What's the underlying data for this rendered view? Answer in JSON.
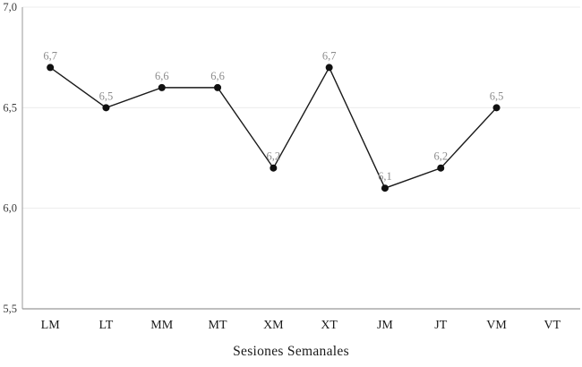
{
  "chart_data": {
    "type": "line",
    "title": "",
    "xlabel": "Sesiones Semanales",
    "ylabel": "",
    "categories": [
      "LM",
      "LT",
      "MM",
      "MT",
      "XM",
      "XT",
      "JM",
      "JT",
      "VM",
      "VT"
    ],
    "series": [
      {
        "name": "Sesiones Semanales",
        "values": [
          6.7,
          6.5,
          6.6,
          6.6,
          6.2,
          6.7,
          6.1,
          6.2,
          6.5,
          null
        ],
        "point_labels": [
          "6,7",
          "6,5",
          "6,6",
          "6,6",
          "6,2",
          "6,7",
          "6,1",
          "6,2",
          "6,5",
          ""
        ]
      }
    ],
    "ylim": [
      5.5,
      7.0
    ],
    "yticks": [
      {
        "value": 7.0,
        "label": "7,0"
      },
      {
        "value": 6.5,
        "label": "6,5"
      },
      {
        "value": 6.0,
        "label": "6,0"
      },
      {
        "value": 5.5,
        "label": "5,5"
      }
    ],
    "grid": "horizontal-faint",
    "legend": "none",
    "colors": {
      "line": "#1a1a1a",
      "point": "#111111",
      "data_label": "#8c8c8c",
      "gridline": "#ececec",
      "axis_line": "#999999",
      "ytick_label": "#3a3a3a",
      "category_label": "#1a1a1a",
      "background": "#ffffff"
    }
  }
}
